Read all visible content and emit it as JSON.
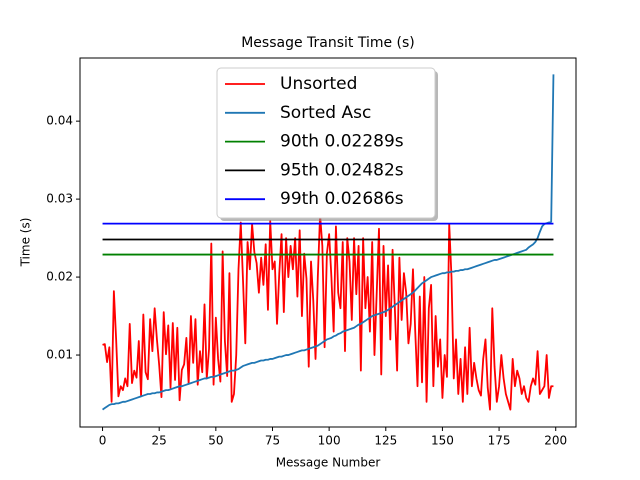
{
  "chart_data": {
    "type": "line",
    "title": "Message Transit Time (s)",
    "xlabel": "Message Number",
    "ylabel": "Time (s)",
    "xlim": [
      -9.95,
      208.95
    ],
    "ylim": [
      0.00077,
      0.0481
    ],
    "xticks": [
      0,
      25,
      50,
      75,
      100,
      125,
      150,
      175,
      200
    ],
    "yticks": [
      0.01,
      0.02,
      0.03,
      0.04
    ],
    "legend": "upper center",
    "series": [
      {
        "name": "Unsorted",
        "color": "#ff0000",
        "values": [
          0.0113,
          0.0114,
          0.0091,
          0.011,
          0.004,
          0.0182,
          0.012,
          0.0047,
          0.006,
          0.0055,
          0.007,
          0.006,
          0.014,
          0.0064,
          0.008,
          0.0071,
          0.0118,
          0.0048,
          0.0152,
          0.0078,
          0.0069,
          0.0146,
          0.0105,
          0.016,
          0.012,
          0.0087,
          0.0046,
          0.0155,
          0.0101,
          0.0138,
          0.0058,
          0.0141,
          0.0068,
          0.0135,
          0.0042,
          0.0081,
          0.0088,
          0.0122,
          0.0063,
          0.015,
          0.009,
          0.0146,
          0.0062,
          0.0105,
          0.0078,
          0.0165,
          0.007,
          0.0108,
          0.0243,
          0.0062,
          0.0148,
          0.0095,
          0.0066,
          0.0233,
          0.0118,
          0.0073,
          0.0205,
          0.004,
          0.005,
          0.01,
          0.021,
          0.027,
          0.0195,
          0.0115,
          0.0245,
          0.021,
          0.0268,
          0.0232,
          0.0218,
          0.018,
          0.0225,
          0.019,
          0.0242,
          0.0158,
          0.0272,
          0.021,
          0.022,
          0.014,
          0.0205,
          0.0255,
          0.0155,
          0.025,
          0.02,
          0.024,
          0.021,
          0.025,
          0.0175,
          0.026,
          0.015,
          0.023,
          0.0198,
          0.0085,
          0.022,
          0.017,
          0.0095,
          0.02,
          0.028,
          0.024,
          0.011,
          0.023,
          0.0255,
          0.02,
          0.013,
          0.0265,
          0.018,
          0.016,
          0.0245,
          0.0105,
          0.025,
          0.022,
          0.0145,
          0.025,
          0.0178,
          0.024,
          0.008,
          0.025,
          0.016,
          0.02,
          0.013,
          0.0245,
          0.01,
          0.018,
          0.0262,
          0.0075,
          0.024,
          0.015,
          0.0215,
          0.012,
          0.0235,
          0.016,
          0.008,
          0.0225,
          0.0145,
          0.0205,
          0.018,
          0.0115,
          0.014,
          0.021,
          0.013,
          0.006,
          0.0175,
          0.0065,
          0.02,
          0.004,
          0.016,
          0.019,
          0.006,
          0.015,
          0.0085,
          0.012,
          0.0045,
          0.01,
          0.0072,
          0.0268,
          0.02,
          0.007,
          0.012,
          0.005,
          0.0095,
          0.004,
          0.011,
          0.005,
          0.0135,
          0.006,
          0.009,
          0.007,
          0.0055,
          0.0048,
          0.0095,
          0.012,
          0.0058,
          0.003,
          0.016,
          0.0085,
          0.004,
          0.006,
          0.01,
          0.007,
          0.005,
          0.004,
          0.003,
          0.0095,
          0.006,
          0.008,
          0.007,
          0.005,
          0.006,
          0.0045,
          0.004,
          0.006,
          0.007,
          0.0062,
          0.0105,
          0.005,
          0.0055,
          0.006,
          0.01,
          0.0045,
          0.006,
          0.006
        ]
      },
      {
        "name": "Sorted Asc",
        "color": "#1f77b4",
        "values": [
          0.003,
          0.0032,
          0.0034,
          0.0036,
          0.0037,
          0.0037,
          0.0038,
          0.0038,
          0.0039,
          0.004,
          0.004,
          0.0041,
          0.0042,
          0.0043,
          0.0044,
          0.0045,
          0.0046,
          0.0047,
          0.0048,
          0.0049,
          0.005,
          0.005,
          0.0051,
          0.0051,
          0.0052,
          0.0052,
          0.0053,
          0.0054,
          0.0055,
          0.0055,
          0.0056,
          0.0057,
          0.0058,
          0.0059,
          0.006,
          0.006,
          0.0061,
          0.0062,
          0.0063,
          0.0064,
          0.0065,
          0.0066,
          0.0067,
          0.0068,
          0.0069,
          0.007,
          0.007,
          0.0071,
          0.0072,
          0.0072,
          0.0073,
          0.0074,
          0.0075,
          0.0076,
          0.0077,
          0.0078,
          0.0079,
          0.008,
          0.008,
          0.0081,
          0.0082,
          0.0084,
          0.0086,
          0.0087,
          0.0088,
          0.0089,
          0.009,
          0.009,
          0.0091,
          0.0092,
          0.0093,
          0.0093,
          0.0094,
          0.0094,
          0.0095,
          0.0095,
          0.0096,
          0.0097,
          0.0098,
          0.0098,
          0.0099,
          0.01,
          0.01,
          0.0101,
          0.0102,
          0.0103,
          0.0104,
          0.0105,
          0.0106,
          0.0106,
          0.0107,
          0.0108,
          0.0109,
          0.011,
          0.0111,
          0.0112,
          0.0114,
          0.0116,
          0.0118,
          0.012,
          0.0121,
          0.0122,
          0.0124,
          0.0125,
          0.0127,
          0.0128,
          0.013,
          0.0131,
          0.0132,
          0.0133,
          0.0134,
          0.0135,
          0.0137,
          0.0139,
          0.014,
          0.0142,
          0.0144,
          0.0146,
          0.0148,
          0.015,
          0.0151,
          0.0152,
          0.0153,
          0.0154,
          0.0155,
          0.0156,
          0.0158,
          0.016,
          0.0162,
          0.0164,
          0.0166,
          0.0168,
          0.017,
          0.0172,
          0.0174,
          0.0176,
          0.0178,
          0.018,
          0.0183,
          0.0186,
          0.0189,
          0.0192,
          0.0194,
          0.0196,
          0.0198,
          0.02,
          0.0201,
          0.0202,
          0.0203,
          0.0204,
          0.0205,
          0.0205,
          0.0206,
          0.0206,
          0.0207,
          0.0207,
          0.0208,
          0.0208,
          0.0209,
          0.0209,
          0.021,
          0.021,
          0.0211,
          0.0212,
          0.0213,
          0.0214,
          0.0215,
          0.0216,
          0.0217,
          0.0218,
          0.0219,
          0.022,
          0.0221,
          0.0222,
          0.0222,
          0.0223,
          0.0224,
          0.0225,
          0.0226,
          0.0227,
          0.0228,
          0.0229,
          0.023,
          0.0231,
          0.0232,
          0.0233,
          0.0234,
          0.0235,
          0.0238,
          0.024,
          0.0242,
          0.0245,
          0.025,
          0.0258,
          0.0265,
          0.0268,
          0.0269,
          0.027,
          0.0271,
          0.046
        ]
      }
    ],
    "hlines": [
      {
        "name": "90th 0.02289s",
        "color": "#008000",
        "value": 0.02289
      },
      {
        "name": "95th 0.02482s",
        "color": "#000000",
        "value": 0.02482
      },
      {
        "name": "99th 0.02686s",
        "color": "#0000ff",
        "value": 0.02686
      }
    ]
  }
}
